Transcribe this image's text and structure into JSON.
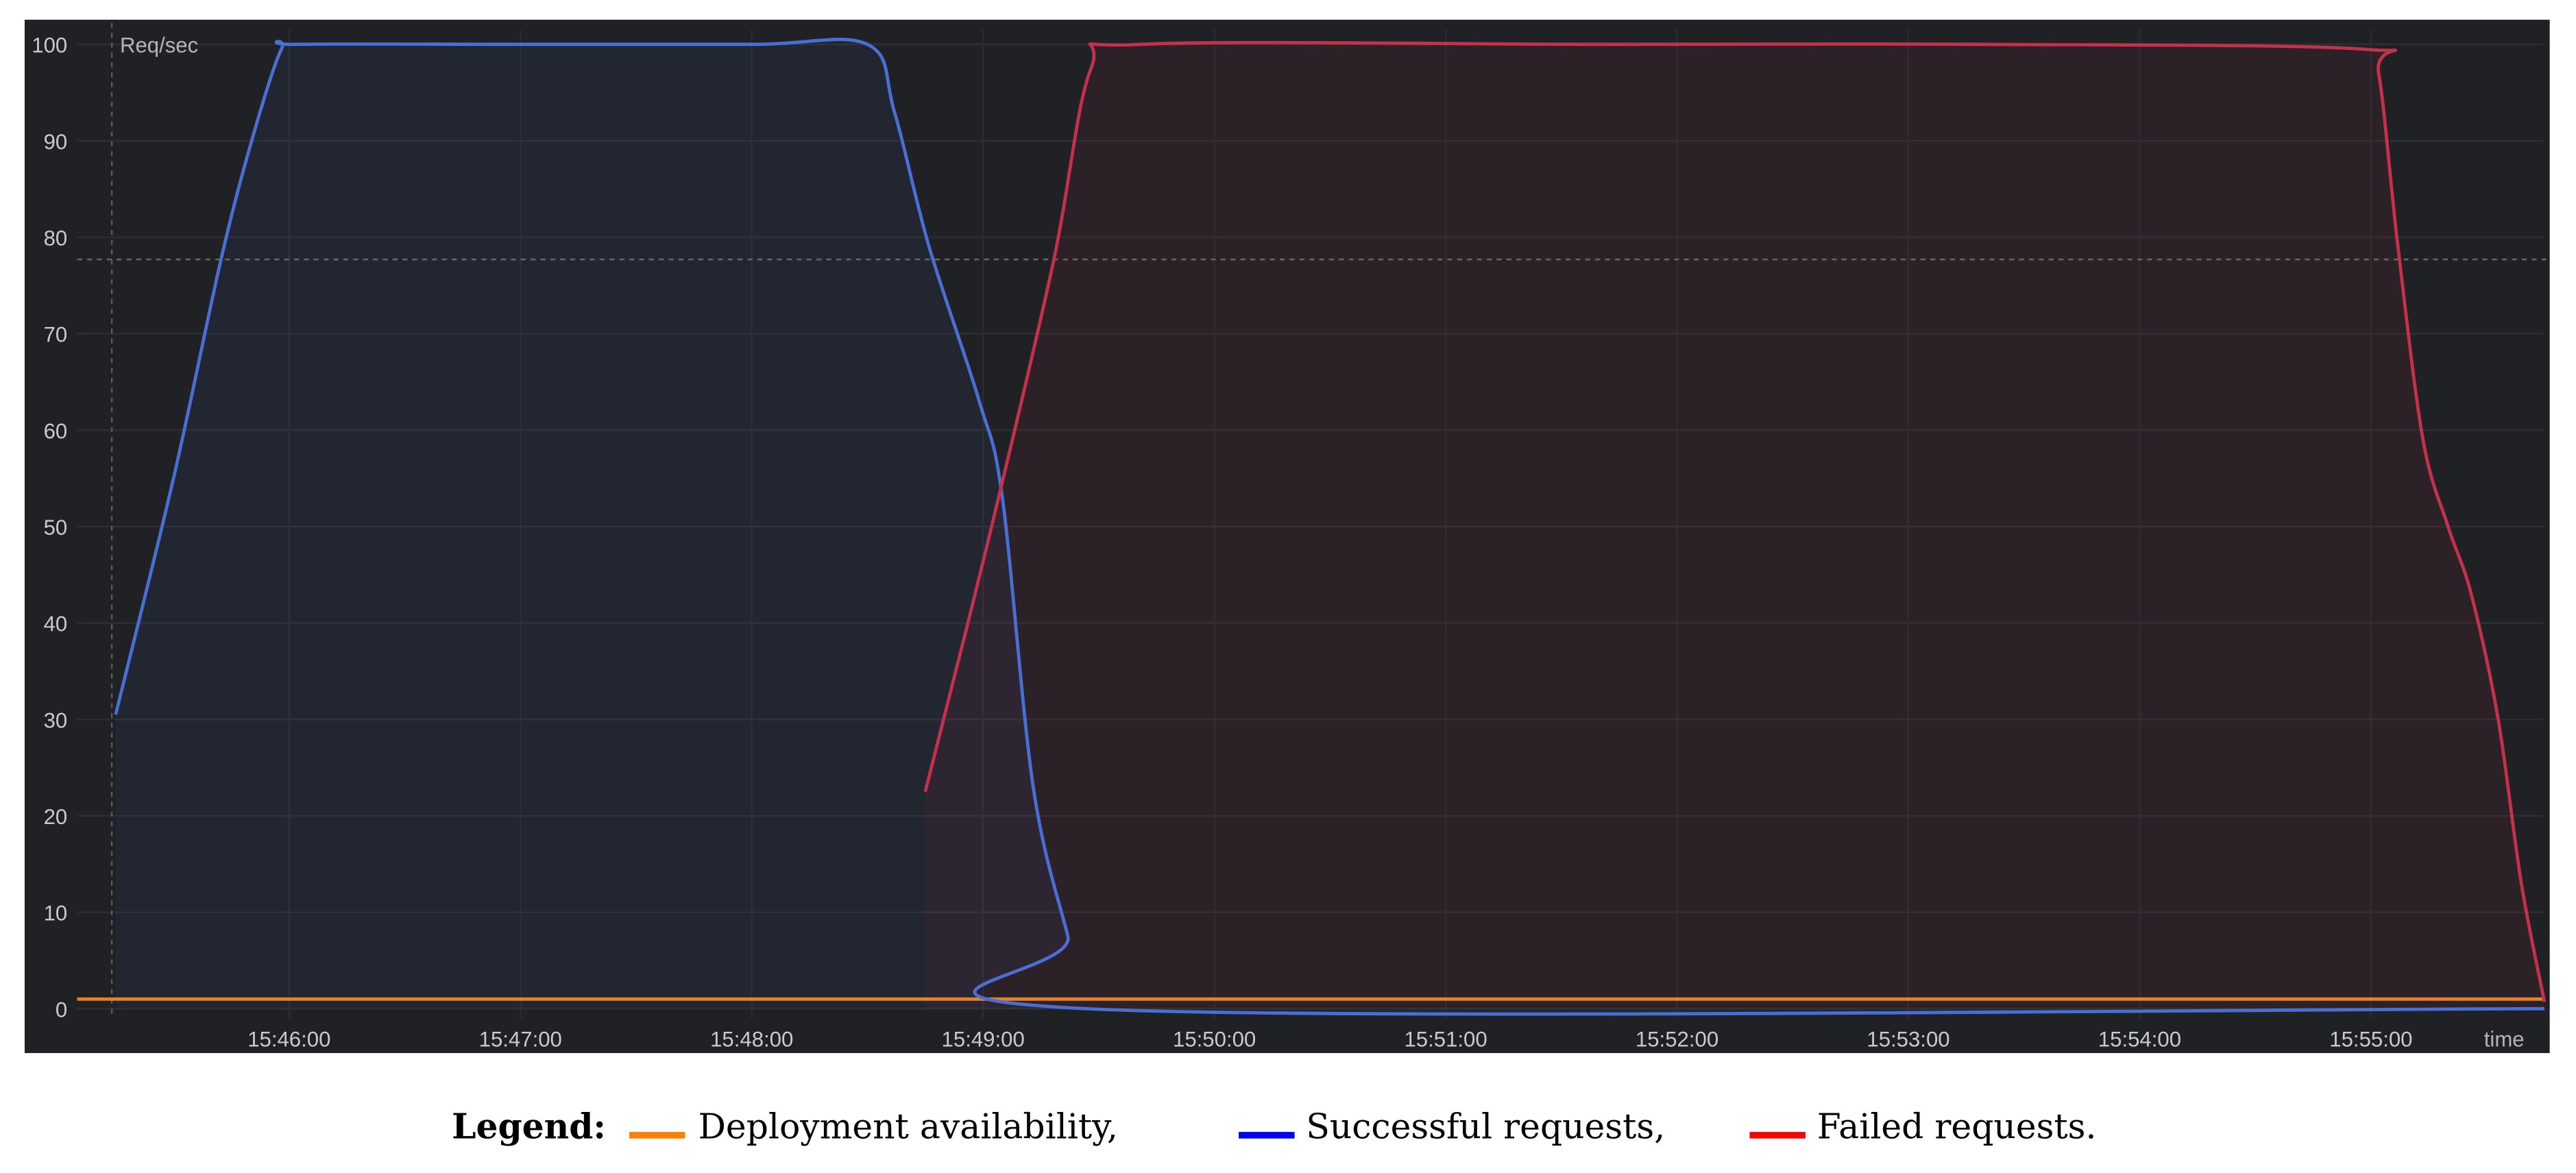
{
  "chart_data": {
    "type": "line",
    "title": "",
    "ylabel": "Req/sec",
    "xlabel": "time",
    "ylim": [
      0,
      100
    ],
    "yticks": [
      "0",
      "10",
      "20",
      "30",
      "40",
      "50",
      "60",
      "70",
      "80",
      "90",
      "100"
    ],
    "x_unit": "seconds after 15:45:00",
    "xlim": [
      5,
      645
    ],
    "xticks": [
      "15:46:00",
      "15:47:00",
      "15:48:00",
      "15:49:00",
      "15:50:00",
      "15:51:00",
      "15:52:00",
      "15:53:00",
      "15:54:00",
      "15:55:00"
    ],
    "grid": true,
    "threshold_line": {
      "y": 77.7
    },
    "marker_line": {
      "x": 14
    },
    "series": [
      {
        "name": "Deployment availability",
        "color": "#e8822a",
        "points": [
          [
            5,
            1
          ],
          [
            645,
            1
          ]
        ]
      },
      {
        "name": "Successful requests",
        "color": "#4a6fd4",
        "fill": true,
        "points": [
          [
            15,
            30.5
          ],
          [
            30,
            55
          ],
          [
            42.5,
            78
          ],
          [
            51,
            91
          ],
          [
            58,
            99.5
          ],
          [
            62,
            100
          ],
          [
            120,
            100
          ],
          [
            180,
            100
          ],
          [
            210,
            100
          ],
          [
            217,
            93
          ],
          [
            226,
            79
          ],
          [
            239,
            63
          ],
          [
            245,
            53
          ],
          [
            253,
            23
          ],
          [
            262,
            7.5
          ],
          [
            267,
            0
          ],
          [
            645,
            0
          ]
        ]
      },
      {
        "name": "Failed requests",
        "color": "#c4314b",
        "fill": true,
        "points": [
          [
            225,
            22.5
          ],
          [
            241,
            48
          ],
          [
            258,
            77
          ],
          [
            268,
            97.5
          ],
          [
            281,
            100
          ],
          [
            400,
            100
          ],
          [
            500,
            100
          ],
          [
            598,
            99.5
          ],
          [
            602,
            97
          ],
          [
            607,
            79
          ],
          [
            613.5,
            59
          ],
          [
            620,
            50
          ],
          [
            626,
            43
          ],
          [
            633,
            30
          ],
          [
            639,
            13
          ],
          [
            645,
            0.7
          ]
        ]
      }
    ]
  },
  "legend": {
    "title": "Legend:",
    "items": [
      {
        "label": "Deployment availability,",
        "color": "#ff7f00"
      },
      {
        "label": "Successful requests,",
        "color": "#0000ff"
      },
      {
        "label": "Failed requests.",
        "color": "#ff0000"
      }
    ]
  }
}
